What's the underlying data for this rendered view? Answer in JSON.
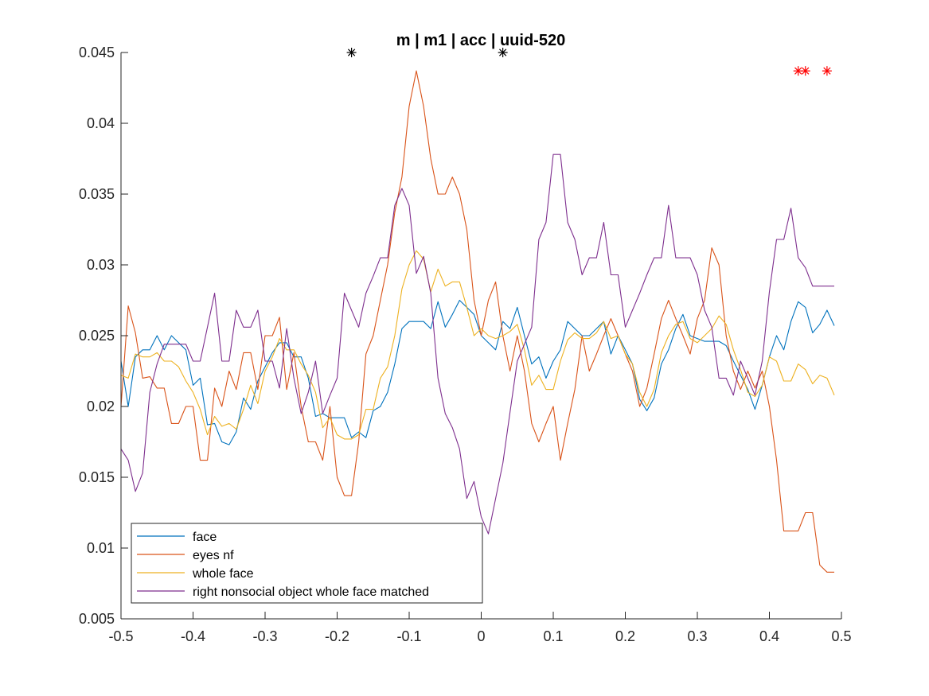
{
  "chart_data": {
    "type": "line",
    "title": "m | m1 | acc | uuid-520",
    "xlim": [
      -0.5,
      0.5
    ],
    "ylim": [
      0.005,
      0.045
    ],
    "x_ticks": [
      "-0.5",
      "-0.4",
      "-0.3",
      "-0.2",
      "-0.1",
      "0",
      "0.1",
      "0.2",
      "0.3",
      "0.4",
      "0.5"
    ],
    "y_ticks": [
      "0.005",
      "0.01",
      "0.015",
      "0.02",
      "0.025",
      "0.03",
      "0.035",
      "0.04",
      "0.045"
    ],
    "legend_position": "bottom-left",
    "x": [
      -0.5,
      -0.49,
      -0.48,
      -0.47,
      -0.46,
      -0.45,
      -0.44,
      -0.43,
      -0.42,
      -0.41,
      -0.4,
      -0.39,
      -0.38,
      -0.37,
      -0.36,
      -0.35,
      -0.34,
      -0.33,
      -0.32,
      -0.31,
      -0.3,
      -0.29,
      -0.28,
      -0.27,
      -0.26,
      -0.25,
      -0.24,
      -0.23,
      -0.22,
      -0.21,
      -0.2,
      -0.19,
      -0.18,
      -0.17,
      -0.16,
      -0.15,
      -0.14,
      -0.13,
      -0.12,
      -0.11,
      -0.1,
      -0.09,
      -0.08,
      -0.07,
      -0.06,
      -0.05,
      -0.04,
      -0.03,
      -0.02,
      -0.01,
      0,
      0.01,
      0.02,
      0.03,
      0.04,
      0.05,
      0.06,
      0.07,
      0.08,
      0.09,
      0.1,
      0.11,
      0.12,
      0.13,
      0.14,
      0.15,
      0.16,
      0.17,
      0.18,
      0.19,
      0.2,
      0.21,
      0.22,
      0.23,
      0.24,
      0.25,
      0.26,
      0.27,
      0.28,
      0.29,
      0.3,
      0.31,
      0.32,
      0.33,
      0.34,
      0.35,
      0.36,
      0.37,
      0.38,
      0.39,
      0.4,
      0.41,
      0.42,
      0.43,
      0.44,
      0.45,
      0.46,
      0.47,
      0.48,
      0.49
    ],
    "series": [
      {
        "name": "face",
        "color": "#0072BD",
        "values": [
          0.0232,
          0.02,
          0.0235,
          0.024,
          0.024,
          0.025,
          0.024,
          0.025,
          0.0245,
          0.024,
          0.0215,
          0.022,
          0.0187,
          0.0188,
          0.0175,
          0.0173,
          0.0182,
          0.0206,
          0.0198,
          0.0218,
          0.0228,
          0.0238,
          0.0245,
          0.0245,
          0.0235,
          0.0235,
          0.022,
          0.0193,
          0.0195,
          0.0192,
          0.0192,
          0.0192,
          0.0178,
          0.0182,
          0.0178,
          0.0197,
          0.02,
          0.021,
          0.023,
          0.0255,
          0.026,
          0.026,
          0.026,
          0.0255,
          0.0274,
          0.0256,
          0.0265,
          0.0275,
          0.027,
          0.0265,
          0.025,
          0.0245,
          0.024,
          0.026,
          0.0255,
          0.027,
          0.025,
          0.023,
          0.0235,
          0.022,
          0.0232,
          0.024,
          0.026,
          0.0255,
          0.025,
          0.025,
          0.0255,
          0.026,
          0.0237,
          0.025,
          0.024,
          0.023,
          0.0205,
          0.0197,
          0.0206,
          0.023,
          0.024,
          0.0255,
          0.0265,
          0.025,
          0.0248,
          0.0246,
          0.0246,
          0.0246,
          0.0243,
          0.0232,
          0.0222,
          0.0212,
          0.0198,
          0.0215,
          0.0235,
          0.025,
          0.024,
          0.026,
          0.0274,
          0.027,
          0.0252,
          0.0258,
          0.0268,
          0.0257
        ]
      },
      {
        "name": "eyes nf",
        "color": "#D95319",
        "values": [
          0.02,
          0.0271,
          0.0252,
          0.022,
          0.0221,
          0.0213,
          0.0213,
          0.0188,
          0.0188,
          0.02,
          0.02,
          0.0162,
          0.0162,
          0.0213,
          0.02,
          0.0225,
          0.0212,
          0.0238,
          0.0238,
          0.0212,
          0.025,
          0.025,
          0.0263,
          0.0212,
          0.0238,
          0.02,
          0.0175,
          0.0175,
          0.0162,
          0.02,
          0.015,
          0.0137,
          0.0137,
          0.0175,
          0.0237,
          0.025,
          0.0275,
          0.03,
          0.0337,
          0.0362,
          0.0412,
          0.0437,
          0.0412,
          0.0375,
          0.035,
          0.035,
          0.0362,
          0.035,
          0.0325,
          0.0275,
          0.025,
          0.0275,
          0.0288,
          0.025,
          0.0225,
          0.025,
          0.0225,
          0.0188,
          0.0175,
          0.0188,
          0.02,
          0.0162,
          0.0188,
          0.0212,
          0.025,
          0.0225,
          0.0237,
          0.025,
          0.0262,
          0.025,
          0.0237,
          0.0225,
          0.02,
          0.0213,
          0.0237,
          0.0262,
          0.0275,
          0.0262,
          0.025,
          0.0237,
          0.0262,
          0.0275,
          0.0312,
          0.03,
          0.025,
          0.0225,
          0.0212,
          0.0225,
          0.0213,
          0.0225,
          0.02,
          0.0162,
          0.0112,
          0.0112,
          0.0112,
          0.0125,
          0.0125,
          0.0088,
          0.0083,
          0.0083
        ]
      },
      {
        "name": "whole face",
        "color": "#EDB120",
        "values": [
          0.0222,
          0.022,
          0.0237,
          0.0235,
          0.0235,
          0.0238,
          0.0232,
          0.0232,
          0.0228,
          0.0218,
          0.021,
          0.0198,
          0.018,
          0.0193,
          0.0186,
          0.0188,
          0.0184,
          0.0198,
          0.0215,
          0.0202,
          0.0225,
          0.0235,
          0.0248,
          0.024,
          0.024,
          0.023,
          0.0222,
          0.021,
          0.0185,
          0.0192,
          0.018,
          0.0177,
          0.0177,
          0.018,
          0.0198,
          0.0198,
          0.022,
          0.0228,
          0.025,
          0.0283,
          0.03,
          0.031,
          0.0304,
          0.0281,
          0.0297,
          0.0285,
          0.0288,
          0.0288,
          0.027,
          0.025,
          0.0255,
          0.025,
          0.0248,
          0.025,
          0.0253,
          0.0258,
          0.024,
          0.0215,
          0.0222,
          0.0212,
          0.0212,
          0.0232,
          0.0247,
          0.0252,
          0.0248,
          0.0248,
          0.0252,
          0.026,
          0.0248,
          0.025,
          0.0237,
          0.023,
          0.021,
          0.02,
          0.0212,
          0.0238,
          0.025,
          0.0258,
          0.026,
          0.0248,
          0.0245,
          0.025,
          0.0255,
          0.0264,
          0.0258,
          0.024,
          0.0226,
          0.021,
          0.0207,
          0.0215,
          0.0235,
          0.0232,
          0.0218,
          0.0218,
          0.023,
          0.0226,
          0.0216,
          0.0222,
          0.022,
          0.0208
        ]
      },
      {
        "name": "right nonsocial object whole face matched",
        "color": "#7E2F8E",
        "values": [
          0.017,
          0.0162,
          0.014,
          0.0153,
          0.021,
          0.023,
          0.0244,
          0.0244,
          0.0244,
          0.0244,
          0.0232,
          0.0232,
          0.0256,
          0.028,
          0.0232,
          0.0232,
          0.0268,
          0.0256,
          0.0256,
          0.0268,
          0.0232,
          0.0232,
          0.0213,
          0.0255,
          0.022,
          0.0195,
          0.021,
          0.0232,
          0.0195,
          0.0208,
          0.022,
          0.028,
          0.0268,
          0.0256,
          0.028,
          0.0292,
          0.0305,
          0.0305,
          0.0342,
          0.0354,
          0.0342,
          0.0294,
          0.0306,
          0.028,
          0.022,
          0.0195,
          0.0185,
          0.017,
          0.0135,
          0.0147,
          0.0122,
          0.011,
          0.0135,
          0.016,
          0.0196,
          0.0232,
          0.0244,
          0.0256,
          0.0318,
          0.033,
          0.0378,
          0.0378,
          0.033,
          0.0318,
          0.0293,
          0.0305,
          0.0305,
          0.033,
          0.0293,
          0.0293,
          0.0256,
          0.0268,
          0.028,
          0.0293,
          0.0305,
          0.0305,
          0.0342,
          0.0305,
          0.0305,
          0.0305,
          0.0293,
          0.0268,
          0.0256,
          0.022,
          0.022,
          0.0208,
          0.0232,
          0.022,
          0.0208,
          0.0232,
          0.0281,
          0.0318,
          0.0318,
          0.034,
          0.0305,
          0.0298,
          0.0285,
          0.0285,
          0.0285,
          0.0285
        ]
      }
    ],
    "markers": [
      {
        "x": -0.18,
        "y": 0.045,
        "color": "#000000"
      },
      {
        "x": 0.03,
        "y": 0.045,
        "color": "#000000"
      },
      {
        "x": 0.44,
        "y": 0.0437,
        "color": "#FF0000"
      },
      {
        "x": 0.45,
        "y": 0.0437,
        "color": "#FF0000"
      },
      {
        "x": 0.48,
        "y": 0.0437,
        "color": "#FF0000"
      }
    ]
  }
}
